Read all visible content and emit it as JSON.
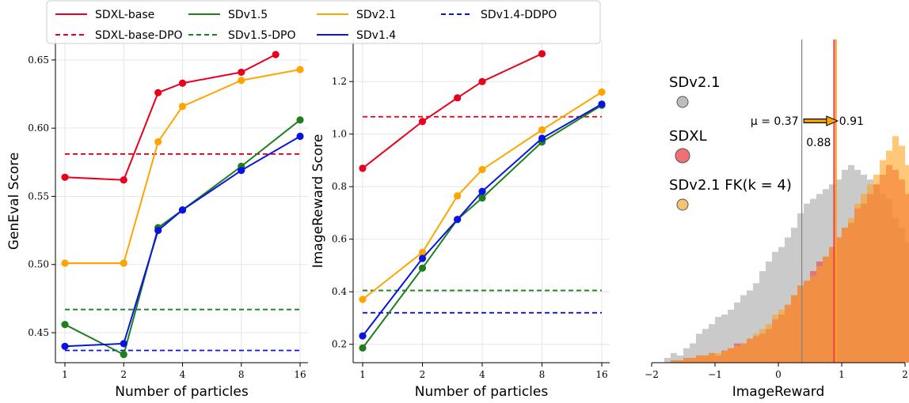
{
  "legend": [
    {
      "name": "SDXL-base",
      "color": "#e8001c",
      "dash": false
    },
    {
      "name": "SDXL-base-DPO",
      "color": "#e8001c",
      "dash": true
    },
    {
      "name": "SDv1.5",
      "color": "#1f7f1f",
      "dash": false
    },
    {
      "name": "SDv1.5-DPO",
      "color": "#1f7f1f",
      "dash": true
    },
    {
      "name": "SDv2.1",
      "color": "#ffa500",
      "dash": false
    },
    {
      "name": "SDv1.4",
      "color": "#0a14e0",
      "dash": false
    },
    {
      "name": "SDv1.4-DDPO",
      "color": "#0a14e0",
      "dash": true
    }
  ],
  "chart_data": [
    {
      "type": "line",
      "xlabel": "Number of particles",
      "ylabel": "GenEval Score",
      "x_ticks": [
        "1",
        "2",
        "4",
        "8",
        "16"
      ],
      "x_scale": "log2",
      "ylim": [
        0.428,
        0.665
      ],
      "y_ticks": [
        "0.45",
        "0.50",
        "0.55",
        "0.60",
        "0.65"
      ],
      "grid": true,
      "series": [
        {
          "name": "SDXL-base",
          "color": "#e8001c",
          "x": [
            1,
            2,
            3,
            4,
            8,
            12
          ],
          "y": [
            0.564,
            0.562,
            0.626,
            0.633,
            0.641,
            0.654
          ]
        },
        {
          "name": "SDv2.1",
          "color": "#ffa500",
          "x": [
            1,
            2,
            3,
            4,
            8,
            16
          ],
          "y": [
            0.501,
            0.501,
            0.59,
            0.616,
            0.635,
            0.643
          ]
        },
        {
          "name": "SDv1.5",
          "color": "#1f7f1f",
          "x": [
            1,
            2,
            3,
            4,
            8,
            16
          ],
          "y": [
            0.456,
            0.434,
            0.527,
            0.54,
            0.572,
            0.606
          ]
        },
        {
          "name": "SDv1.4",
          "color": "#0a14e0",
          "x": [
            1,
            2,
            3,
            4,
            8,
            16
          ],
          "y": [
            0.44,
            0.442,
            0.525,
            0.54,
            0.569,
            0.594
          ]
        }
      ],
      "hlines": [
        {
          "name": "SDXL-base-DPO",
          "color": "#e8001c",
          "y": 0.581
        },
        {
          "name": "SDv1.5-DPO",
          "color": "#1f7f1f",
          "y": 0.467
        },
        {
          "name": "SDv1.4-DDPO",
          "color": "#0a14e0",
          "y": 0.437
        }
      ]
    },
    {
      "type": "line",
      "xlabel": "Number of particles",
      "ylabel": "ImageReward Score",
      "x_ticks": [
        "1",
        "2",
        "4",
        "8",
        "16"
      ],
      "x_scale": "log2",
      "ylim": [
        0.13,
        1.36
      ],
      "y_ticks": [
        "0.2",
        "0.4",
        "0.6",
        "0.8",
        "1.0",
        "1.2"
      ],
      "grid": true,
      "series": [
        {
          "name": "SDXL-base",
          "color": "#e8001c",
          "x": [
            1,
            2,
            3,
            4,
            8
          ],
          "y": [
            0.87,
            1.048,
            1.138,
            1.2,
            1.306
          ]
        },
        {
          "name": "SDv2.1",
          "color": "#ffa500",
          "x": [
            1,
            2,
            3,
            4,
            8,
            16
          ],
          "y": [
            0.371,
            0.55,
            0.765,
            0.865,
            1.016,
            1.16
          ]
        },
        {
          "name": "SDv1.5",
          "color": "#1f7f1f",
          "x": [
            1,
            2,
            3,
            4,
            8,
            16
          ],
          "y": [
            0.186,
            0.49,
            0.675,
            0.757,
            0.97,
            1.11
          ]
        },
        {
          "name": "SDv1.4",
          "color": "#0a14e0",
          "x": [
            1,
            2,
            3,
            4,
            8,
            16
          ],
          "y": [
            0.232,
            0.527,
            0.675,
            0.782,
            0.984,
            1.114
          ]
        }
      ],
      "hlines": [
        {
          "name": "SDXL-base-DPO",
          "color": "#e8001c",
          "y": 1.066
        },
        {
          "name": "SDv1.5-DPO",
          "color": "#1f7f1f",
          "y": 0.405
        },
        {
          "name": "SDv1.4-DDPO",
          "color": "#0a14e0",
          "y": 0.32
        }
      ]
    },
    {
      "type": "histogram",
      "xlabel": "ImageReward",
      "ylabel": "",
      "xlim": [
        -2,
        2
      ],
      "x_ticks": [
        "−2",
        "−1",
        "0",
        "1",
        "2"
      ],
      "bin_start": -1.8,
      "bin_width": 0.1,
      "series": [
        {
          "name": "SDv2.1",
          "color": "#a8a8a8",
          "counts": [
            2,
            4,
            3,
            6,
            8,
            12,
            14,
            16,
            19,
            20,
            22,
            25,
            28,
            30,
            33,
            38,
            42,
            46,
            48,
            52,
            56,
            62,
            66,
            68,
            70,
            72,
            74,
            76,
            80,
            82,
            80,
            78,
            76,
            74,
            70,
            68,
            60,
            56,
            50
          ]
        },
        {
          "name": "SDXL",
          "color": "#e8404f",
          "counts": [
            0,
            1,
            1,
            2,
            2,
            3,
            3,
            4,
            3,
            5,
            6,
            8,
            8,
            10,
            11,
            12,
            14,
            18,
            20,
            24,
            28,
            32,
            34,
            38,
            42,
            44,
            48,
            52,
            56,
            58,
            64,
            66,
            70,
            74,
            78,
            82,
            80,
            76,
            70
          ]
        },
        {
          "name": "SDv2.1 FK(k = 4)",
          "color": "#ffa21f",
          "counts": [
            0,
            1,
            1,
            2,
            2,
            3,
            3,
            4,
            4,
            5,
            6,
            7,
            8,
            10,
            12,
            14,
            16,
            20,
            22,
            24,
            28,
            32,
            34,
            36,
            40,
            44,
            48,
            52,
            56,
            60,
            66,
            70,
            74,
            78,
            84,
            88,
            94,
            90,
            82
          ]
        }
      ],
      "vlines": [
        {
          "x": 0.37,
          "color": "#808080"
        },
        {
          "x": 0.88,
          "color": "#e8404f"
        },
        {
          "x": 0.91,
          "color": "#ffa21f"
        }
      ],
      "annotations": {
        "mu_label": "μ = 0.37",
        "sdxl_value": "0.88",
        "fk_value": "0.91"
      },
      "legend_labels": [
        {
          "name": "SDv2.1",
          "color": "#909090",
          "dot": "#bdbdbd"
        },
        {
          "name": "SDXL",
          "color": "#e8001c",
          "dot": "#f07076"
        },
        {
          "name": "SDv2.1 FK(k = 4)",
          "color": "#ffa500",
          "dot": "#f6c370"
        }
      ]
    }
  ]
}
